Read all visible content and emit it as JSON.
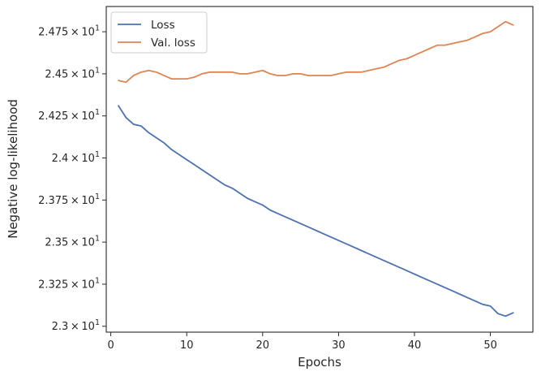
{
  "chart_data": {
    "type": "line",
    "title": "",
    "xlabel": "Epochs",
    "ylabel": "Negative log-likelihood",
    "xlim": [
      -0.6,
      55.6
    ],
    "ylim": [
      22.965,
      24.9
    ],
    "grid": false,
    "legend": "top-left",
    "x_ticks": [
      0,
      10,
      20,
      30,
      40,
      50
    ],
    "x_tick_labels": [
      "0",
      "10",
      "20",
      "30",
      "40",
      "50"
    ],
    "y_ticks": [
      23.0,
      23.25,
      23.5,
      23.75,
      24.0,
      24.25,
      24.5,
      24.75
    ],
    "y_tick_labels": [
      {
        "mantissa": "2.3",
        "exp": "1"
      },
      {
        "mantissa": "2.325",
        "exp": "1"
      },
      {
        "mantissa": "2.35",
        "exp": "1"
      },
      {
        "mantissa": "2.375",
        "exp": "1"
      },
      {
        "mantissa": "2.4",
        "exp": "1"
      },
      {
        "mantissa": "2.425",
        "exp": "1"
      },
      {
        "mantissa": "2.45",
        "exp": "1"
      },
      {
        "mantissa": "2.475",
        "exp": "1"
      }
    ],
    "x": [
      1,
      2,
      3,
      4,
      5,
      6,
      7,
      8,
      9,
      10,
      11,
      12,
      13,
      14,
      15,
      16,
      17,
      18,
      19,
      20,
      21,
      22,
      23,
      24,
      25,
      26,
      27,
      28,
      29,
      30,
      31,
      32,
      33,
      34,
      35,
      36,
      37,
      38,
      39,
      40,
      41,
      42,
      43,
      44,
      45,
      46,
      47,
      48,
      49,
      50,
      51,
      52,
      53
    ],
    "series": [
      {
        "name": "Loss",
        "color": "#4c72b0",
        "values": [
          24.31,
          24.24,
          24.2,
          24.19,
          24.15,
          24.12,
          24.09,
          24.05,
          24.02,
          23.99,
          23.96,
          23.93,
          23.9,
          23.87,
          23.84,
          23.82,
          23.79,
          23.76,
          23.74,
          23.72,
          23.69,
          23.67,
          23.65,
          23.63,
          23.61,
          23.59,
          23.57,
          23.55,
          23.53,
          23.51,
          23.49,
          23.47,
          23.45,
          23.43,
          23.41,
          23.39,
          23.37,
          23.35,
          23.33,
          23.31,
          23.29,
          23.27,
          23.25,
          23.23,
          23.21,
          23.19,
          23.17,
          23.15,
          23.13,
          23.12,
          23.075,
          23.06,
          23.08
        ]
      },
      {
        "name": "Val. loss",
        "color": "#dd8452",
        "values": [
          24.46,
          24.45,
          24.49,
          24.51,
          24.52,
          24.51,
          24.49,
          24.47,
          24.47,
          24.47,
          24.48,
          24.5,
          24.51,
          24.51,
          24.51,
          24.51,
          24.5,
          24.5,
          24.51,
          24.52,
          24.5,
          24.49,
          24.49,
          24.5,
          24.5,
          24.49,
          24.49,
          24.49,
          24.49,
          24.5,
          24.51,
          24.51,
          24.51,
          24.52,
          24.53,
          24.54,
          24.56,
          24.58,
          24.59,
          24.61,
          24.63,
          24.65,
          24.67,
          24.67,
          24.68,
          24.69,
          24.7,
          24.72,
          24.74,
          24.75,
          24.78,
          24.81,
          24.79
        ]
      }
    ]
  }
}
